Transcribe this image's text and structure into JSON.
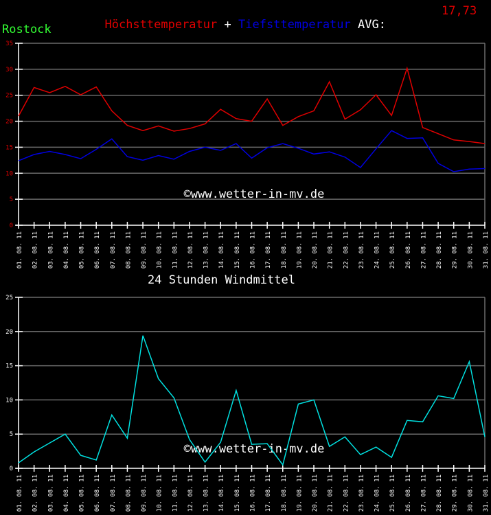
{
  "header": {
    "max_label": "Höchsttemperatur",
    "plus": "+",
    "min_label": "Tiefsttemperatur",
    "avg_label": "AVG:",
    "avg_value": "17,73",
    "max_color": "#e00000",
    "min_color": "#0000e0",
    "avg_label_color": "#ffffff",
    "avg_value_color": "#e00000"
  },
  "location": "Rostock",
  "watermark": "©www.wetter-in-mv.de",
  "wind_title": "24 Stunden Windmittel",
  "chart_data": [
    {
      "type": "line",
      "title": "Höchsttemperatur + Tiefsttemperatur",
      "xlabel": "",
      "ylabel": "",
      "ylim": [
        0,
        35
      ],
      "yticks": [
        0,
        5,
        10,
        15,
        20,
        25,
        30,
        35
      ],
      "grid": true,
      "categories": [
        "01.08.11",
        "02.08.11",
        "03.08.11",
        "04.08.11",
        "05.08.11",
        "06.08.11",
        "07.08.11",
        "08.08.11",
        "09.08.11",
        "10.08.11",
        "11.08.11",
        "12.08.11",
        "13.08.11",
        "14.08.11",
        "15.08.11",
        "16.08.11",
        "17.08.11",
        "18.08.11",
        "19.08.11",
        "20.08.11",
        "21.08.11",
        "22.08.11",
        "23.08.11",
        "24.08.11",
        "25.08.11",
        "26.08.11",
        "27.08.11",
        "28.08.11",
        "29.08.11",
        "30.08.11",
        "31.08.11"
      ],
      "series": [
        {
          "name": "Höchsttemperatur",
          "color": "#e00000",
          "values": [
            21.0,
            26.5,
            25.5,
            26.7,
            25.1,
            26.6,
            22.0,
            19.2,
            18.2,
            19.1,
            18.1,
            18.6,
            19.5,
            22.3,
            20.5,
            20.0,
            24.3,
            19.2,
            20.9,
            22.0,
            27.6,
            20.4,
            22.2,
            25.1,
            21.1,
            30.2,
            18.8,
            17.6,
            16.4,
            16.1,
            15.7
          ]
        },
        {
          "name": "Tiefsttemperatur",
          "color": "#0000e0",
          "values": [
            12.4,
            13.6,
            14.2,
            13.6,
            12.8,
            14.6,
            16.6,
            13.2,
            12.5,
            13.4,
            12.7,
            14.2,
            15.0,
            14.4,
            15.7,
            12.9,
            14.9,
            15.7,
            14.8,
            13.7,
            14.1,
            13.1,
            11.1,
            14.7,
            18.2,
            16.7,
            16.8,
            11.9,
            10.3,
            10.8,
            10.9
          ]
        }
      ]
    },
    {
      "type": "line",
      "title": "24 Stunden Windmittel",
      "xlabel": "",
      "ylabel": "",
      "ylim": [
        0,
        25
      ],
      "yticks": [
        0,
        5,
        10,
        15,
        20,
        25
      ],
      "grid": true,
      "categories": [
        "01.08.11",
        "02.08.11",
        "03.08.11",
        "04.08.11",
        "05.08.11",
        "06.08.11",
        "07.08.11",
        "08.08.11",
        "09.08.11",
        "10.08.11",
        "11.08.11",
        "12.08.11",
        "13.08.11",
        "14.08.11",
        "15.08.11",
        "16.08.11",
        "17.08.11",
        "18.08.11",
        "19.08.11",
        "20.08.11",
        "21.08.11",
        "22.08.11",
        "23.08.11",
        "24.08.11",
        "25.08.11",
        "26.08.11",
        "27.08.11",
        "28.08.11",
        "29.08.11",
        "30.08.11",
        "31.08.11"
      ],
      "series": [
        {
          "name": "Windmittel",
          "color": "#00e0e0",
          "values": [
            0.8,
            2.4,
            3.7,
            5.0,
            1.9,
            1.2,
            7.8,
            4.4,
            19.4,
            13.1,
            10.3,
            4.2,
            0.9,
            3.8,
            11.4,
            3.5,
            3.6,
            0.5,
            9.4,
            10.0,
            3.2,
            4.6,
            2.0,
            3.1,
            1.6,
            7.0,
            6.8,
            10.6,
            10.2,
            15.6,
            4.6
          ]
        }
      ]
    }
  ]
}
